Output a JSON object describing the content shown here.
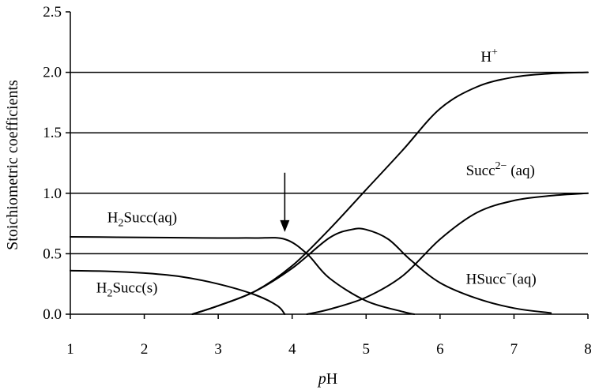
{
  "chart_data": {
    "type": "line",
    "title": "",
    "xlabel_italic": "p",
    "xlabel_rest": "H",
    "ylabel": "Stoichiometric coefficients",
    "xlim": [
      1,
      8
    ],
    "ylim": [
      0,
      2.5
    ],
    "x_ticks": [
      1,
      2,
      3,
      4,
      5,
      6,
      7,
      8
    ],
    "x_tick_labels": [
      "1",
      "2",
      "3",
      "4",
      "5",
      "6",
      "7",
      "8"
    ],
    "y_ticks": [
      0,
      0.5,
      1,
      1.5,
      2,
      2.5
    ],
    "y_tick_labels": [
      "0.0",
      "0.5",
      "1.0",
      "1.5",
      "2.0",
      "2.5"
    ],
    "gridlines_y": [
      0.5,
      1.0,
      1.5,
      2.0
    ],
    "legend": "none",
    "series": [
      {
        "points": [
          [
            2.65,
            0.0
          ],
          [
            3.0,
            0.07
          ],
          [
            3.5,
            0.19
          ],
          [
            4.0,
            0.4
          ],
          [
            4.5,
            0.7
          ],
          [
            5.0,
            1.03
          ],
          [
            5.5,
            1.36
          ],
          [
            6.0,
            1.7
          ],
          [
            6.5,
            1.88
          ],
          [
            7.0,
            1.96
          ],
          [
            7.5,
            1.99
          ],
          [
            8.0,
            2.0
          ]
        ]
      },
      {
        "points": [
          [
            4.2,
            0.0
          ],
          [
            4.5,
            0.04
          ],
          [
            5.0,
            0.14
          ],
          [
            5.5,
            0.32
          ],
          [
            6.0,
            0.62
          ],
          [
            6.5,
            0.84
          ],
          [
            7.0,
            0.94
          ],
          [
            7.5,
            0.98
          ],
          [
            8.0,
            1.0
          ]
        ]
      },
      {
        "points": [
          [
            2.65,
            0.0
          ],
          [
            3.0,
            0.07
          ],
          [
            3.5,
            0.19
          ],
          [
            4.0,
            0.38
          ],
          [
            4.5,
            0.63
          ],
          [
            4.8,
            0.7
          ],
          [
            5.0,
            0.7
          ],
          [
            5.3,
            0.62
          ],
          [
            5.6,
            0.45
          ],
          [
            6.0,
            0.26
          ],
          [
            6.5,
            0.13
          ],
          [
            7.0,
            0.05
          ],
          [
            7.5,
            0.01
          ]
        ]
      },
      {
        "points": [
          [
            1.0,
            0.64
          ],
          [
            2.0,
            0.635
          ],
          [
            3.0,
            0.63
          ],
          [
            3.5,
            0.63
          ],
          [
            3.9,
            0.62
          ],
          [
            4.2,
            0.5
          ],
          [
            4.5,
            0.3
          ],
          [
            5.0,
            0.11
          ],
          [
            5.5,
            0.02
          ],
          [
            5.65,
            0.0
          ]
        ]
      },
      {
        "points": [
          [
            1.0,
            0.36
          ],
          [
            1.5,
            0.355
          ],
          [
            2.0,
            0.34
          ],
          [
            2.5,
            0.31
          ],
          [
            3.0,
            0.25
          ],
          [
            3.5,
            0.16
          ],
          [
            3.8,
            0.07
          ],
          [
            3.9,
            0.0
          ]
        ]
      }
    ],
    "annotations": [
      {
        "label": "H",
        "sup": "+",
        "x": 6.55,
        "y": 2.09
      },
      {
        "label": "Succ",
        "sup": "2−",
        "tail": " (aq)",
        "x": 6.35,
        "y": 1.15
      },
      {
        "label": "H",
        "sub": "2",
        "tail": "Succ(aq)",
        "x": 1.5,
        "y": 0.76
      },
      {
        "label": "HSucc",
        "sup": "−",
        "tail": "(aq)",
        "x": 6.35,
        "y": 0.25
      },
      {
        "label": "H",
        "sub": "2",
        "tail": "Succ(s)",
        "x": 1.35,
        "y": 0.18
      }
    ],
    "arrow": {
      "x": 3.9,
      "y_from": 1.17,
      "y_to": 0.68
    }
  }
}
